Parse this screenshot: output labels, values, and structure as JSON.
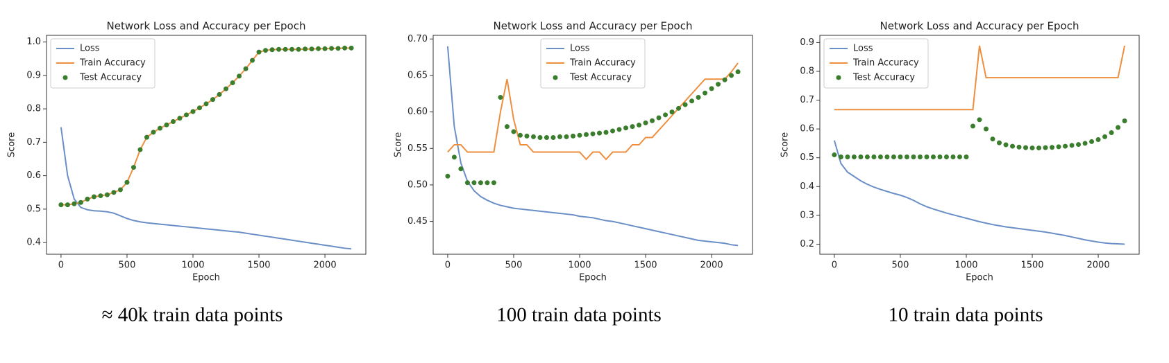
{
  "chart_data": [
    {
      "type": "line",
      "title": "Network Loss and Accuracy per Epoch",
      "xlabel": "Epoch",
      "ylabel": "Score",
      "caption": "≈ 40k train data points",
      "legend": "upper left",
      "xlim": [
        -110,
        2310
      ],
      "xticks": [
        0,
        500,
        1000,
        1500,
        2000
      ],
      "ylim": [
        0.365,
        1.02
      ],
      "yticks": [
        0.4,
        0.5,
        0.6,
        0.7,
        0.8,
        0.9,
        {
          "value": 1,
          "label": "1.0"
        }
      ],
      "x": [
        0,
        50,
        100,
        150,
        200,
        250,
        300,
        350,
        400,
        450,
        500,
        550,
        600,
        650,
        700,
        750,
        800,
        850,
        900,
        950,
        1000,
        1050,
        1100,
        1150,
        1200,
        1250,
        1300,
        1350,
        1400,
        1450,
        1500,
        1550,
        1600,
        1650,
        1700,
        1750,
        1800,
        1850,
        1900,
        1950,
        2000,
        2050,
        2100,
        2150,
        2200
      ],
      "series": [
        {
          "name": "Loss",
          "color": "#6a8fc7",
          "style": "line",
          "values": [
            0.745,
            0.6,
            0.53,
            0.505,
            0.498,
            0.495,
            0.494,
            0.492,
            0.488,
            0.48,
            0.472,
            0.466,
            0.462,
            0.459,
            0.457,
            0.455,
            0.453,
            0.451,
            0.449,
            0.447,
            0.445,
            0.443,
            0.441,
            0.439,
            0.437,
            0.435,
            0.433,
            0.431,
            0.428,
            0.425,
            0.422,
            0.419,
            0.416,
            0.413,
            0.41,
            0.407,
            0.404,
            0.401,
            0.398,
            0.395,
            0.392,
            0.389,
            0.386,
            0.383,
            0.381
          ]
        },
        {
          "name": "Train Accuracy",
          "color": "#ee8f3f",
          "style": "line",
          "values": [
            0.513,
            0.513,
            0.516,
            0.52,
            0.53,
            0.537,
            0.54,
            0.543,
            0.55,
            0.558,
            0.58,
            0.625,
            0.678,
            0.715,
            0.73,
            0.742,
            0.752,
            0.762,
            0.772,
            0.782,
            0.792,
            0.803,
            0.815,
            0.828,
            0.843,
            0.86,
            0.878,
            0.898,
            0.92,
            0.945,
            0.97,
            0.975,
            0.977,
            0.978,
            0.978,
            0.978,
            0.978,
            0.979,
            0.979,
            0.98,
            0.98,
            0.981,
            0.981,
            0.982,
            0.982
          ]
        },
        {
          "name": "Test Accuracy",
          "color": "#3a7d2c",
          "style": "points",
          "values": [
            0.513,
            0.513,
            0.516,
            0.52,
            0.53,
            0.537,
            0.54,
            0.543,
            0.55,
            0.558,
            0.58,
            0.625,
            0.678,
            0.715,
            0.73,
            0.742,
            0.752,
            0.762,
            0.772,
            0.782,
            0.792,
            0.803,
            0.815,
            0.828,
            0.843,
            0.86,
            0.878,
            0.898,
            0.92,
            0.945,
            0.97,
            0.975,
            0.977,
            0.978,
            0.978,
            0.978,
            0.978,
            0.979,
            0.979,
            0.98,
            0.98,
            0.981,
            0.981,
            0.982,
            0.982
          ]
        }
      ]
    },
    {
      "type": "line",
      "title": "Network Loss and Accuracy per Epoch",
      "xlabel": "Epoch",
      "ylabel": "Score",
      "caption": "100 train data points",
      "legend": "upper center",
      "xlim": [
        -110,
        2310
      ],
      "xticks": [
        0,
        500,
        1000,
        1500,
        2000
      ],
      "ylim": [
        0.405,
        0.705
      ],
      "yticks": [
        0.45,
        {
          "value": 0.5,
          "label": "0.50"
        },
        0.55,
        {
          "value": 0.6,
          "label": "0.60"
        },
        0.65,
        {
          "value": 0.7,
          "label": "0.70"
        }
      ],
      "x": [
        0,
        50,
        100,
        150,
        200,
        250,
        300,
        350,
        400,
        450,
        500,
        550,
        600,
        650,
        700,
        750,
        800,
        850,
        900,
        950,
        1000,
        1050,
        1100,
        1150,
        1200,
        1250,
        1300,
        1350,
        1400,
        1450,
        1500,
        1550,
        1600,
        1650,
        1700,
        1750,
        1800,
        1850,
        1900,
        1950,
        2000,
        2050,
        2100,
        2150,
        2200
      ],
      "series": [
        {
          "name": "Loss",
          "color": "#6a8fc7",
          "style": "line",
          "values": [
            0.69,
            0.58,
            0.53,
            0.505,
            0.492,
            0.484,
            0.479,
            0.475,
            0.472,
            0.47,
            0.468,
            0.467,
            0.466,
            0.465,
            0.464,
            0.463,
            0.462,
            0.461,
            0.46,
            0.459,
            0.457,
            0.456,
            0.455,
            0.453,
            0.451,
            0.45,
            0.448,
            0.446,
            0.444,
            0.442,
            0.44,
            0.438,
            0.436,
            0.434,
            0.432,
            0.43,
            0.428,
            0.426,
            0.424,
            0.423,
            0.422,
            0.421,
            0.42,
            0.418,
            0.417
          ]
        },
        {
          "name": "Train Accuracy",
          "color": "#ee8f3f",
          "style": "line",
          "values": [
            0.545,
            0.555,
            0.555,
            0.545,
            0.545,
            0.545,
            0.545,
            0.545,
            0.6,
            0.645,
            0.59,
            0.555,
            0.555,
            0.545,
            0.545,
            0.545,
            0.545,
            0.545,
            0.545,
            0.545,
            0.545,
            0.535,
            0.545,
            0.545,
            0.535,
            0.545,
            0.545,
            0.545,
            0.555,
            0.555,
            0.565,
            0.565,
            0.575,
            0.585,
            0.595,
            0.605,
            0.615,
            0.625,
            0.635,
            0.645,
            0.645,
            0.645,
            0.645,
            0.655,
            0.667
          ]
        },
        {
          "name": "Test Accuracy",
          "color": "#3a7d2c",
          "style": "points",
          "values": [
            0.512,
            0.538,
            0.522,
            0.503,
            0.503,
            0.503,
            0.503,
            0.503,
            0.62,
            0.58,
            0.573,
            0.568,
            0.567,
            0.566,
            0.565,
            0.565,
            0.565,
            0.566,
            0.566,
            0.567,
            0.568,
            0.569,
            0.57,
            0.571,
            0.572,
            0.574,
            0.576,
            0.578,
            0.58,
            0.582,
            0.585,
            0.588,
            0.592,
            0.596,
            0.6,
            0.605,
            0.61,
            0.615,
            0.62,
            0.626,
            0.632,
            0.638,
            0.644,
            0.65,
            0.655
          ]
        }
      ]
    },
    {
      "type": "line",
      "title": "Network Loss and Accuracy per Epoch",
      "xlabel": "Epoch",
      "ylabel": "Score",
      "caption": "10 train data points",
      "legend": "upper left",
      "xlim": [
        -110,
        2310
      ],
      "xticks": [
        0,
        500,
        1000,
        1500,
        2000
      ],
      "ylim": [
        0.165,
        0.925
      ],
      "yticks": [
        0.2,
        0.3,
        0.4,
        0.5,
        0.6,
        0.7,
        0.8,
        0.9
      ],
      "x": [
        0,
        50,
        100,
        150,
        200,
        250,
        300,
        350,
        400,
        450,
        500,
        550,
        600,
        650,
        700,
        750,
        800,
        850,
        900,
        950,
        1000,
        1050,
        1100,
        1150,
        1200,
        1250,
        1300,
        1350,
        1400,
        1450,
        1500,
        1550,
        1600,
        1650,
        1700,
        1750,
        1800,
        1850,
        1900,
        1950,
        2000,
        2050,
        2100,
        2150,
        2200
      ],
      "series": [
        {
          "name": "Loss",
          "color": "#6a8fc7",
          "style": "line",
          "values": [
            0.56,
            0.48,
            0.45,
            0.435,
            0.42,
            0.408,
            0.398,
            0.39,
            0.383,
            0.376,
            0.37,
            0.362,
            0.352,
            0.34,
            0.33,
            0.322,
            0.315,
            0.308,
            0.302,
            0.296,
            0.29,
            0.284,
            0.278,
            0.273,
            0.268,
            0.264,
            0.26,
            0.257,
            0.254,
            0.251,
            0.248,
            0.245,
            0.242,
            0.238,
            0.234,
            0.23,
            0.225,
            0.22,
            0.215,
            0.211,
            0.207,
            0.204,
            0.202,
            0.201,
            0.2
          ]
        },
        {
          "name": "Train Accuracy",
          "color": "#ee8f3f",
          "style": "line",
          "values": [
            0.667,
            0.667,
            0.667,
            0.667,
            0.667,
            0.667,
            0.667,
            0.667,
            0.667,
            0.667,
            0.667,
            0.667,
            0.667,
            0.667,
            0.667,
            0.667,
            0.667,
            0.667,
            0.667,
            0.667,
            0.667,
            0.667,
            0.889,
            0.778,
            0.778,
            0.778,
            0.778,
            0.778,
            0.778,
            0.778,
            0.778,
            0.778,
            0.778,
            0.778,
            0.778,
            0.778,
            0.778,
            0.778,
            0.778,
            0.778,
            0.778,
            0.778,
            0.778,
            0.778,
            0.889
          ]
        },
        {
          "name": "Test Accuracy",
          "color": "#3a7d2c",
          "style": "points",
          "values": [
            0.51,
            0.503,
            0.503,
            0.503,
            0.503,
            0.503,
            0.503,
            0.503,
            0.503,
            0.503,
            0.503,
            0.503,
            0.503,
            0.503,
            0.503,
            0.503,
            0.503,
            0.503,
            0.503,
            0.503,
            0.503,
            0.61,
            0.632,
            0.6,
            0.565,
            0.552,
            0.545,
            0.54,
            0.537,
            0.535,
            0.534,
            0.534,
            0.535,
            0.536,
            0.538,
            0.54,
            0.543,
            0.546,
            0.55,
            0.556,
            0.563,
            0.573,
            0.587,
            0.605,
            0.628
          ]
        }
      ]
    }
  ]
}
